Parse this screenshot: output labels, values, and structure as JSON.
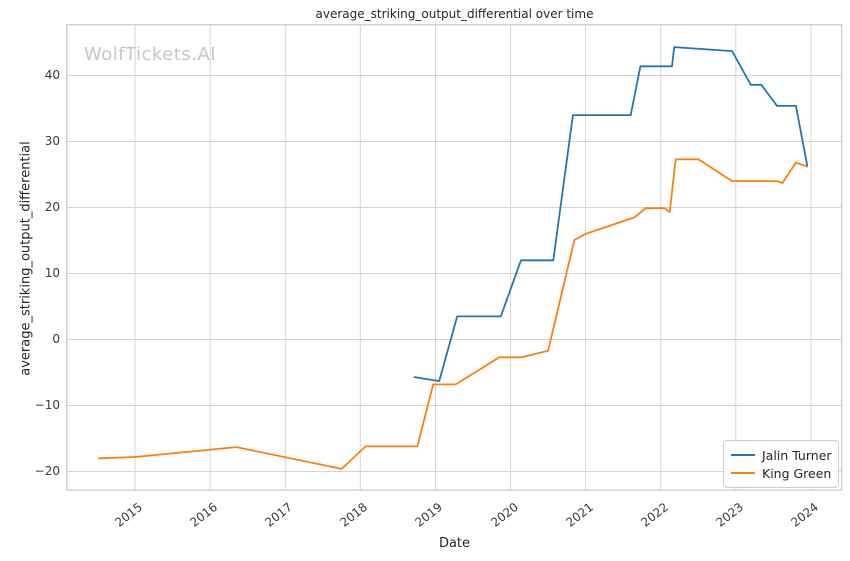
{
  "watermark": "WolfTickets.AI",
  "chart_data": {
    "type": "line",
    "title": "average_striking_output_differential over time",
    "xlabel": "Date",
    "ylabel": "average_striking_output_differential",
    "grid": true,
    "legend_position": "lower right",
    "x_ticks": [
      2015,
      2016,
      2017,
      2018,
      2019,
      2020,
      2021,
      2022,
      2023,
      2024
    ],
    "y_ticks": [
      -20,
      -10,
      0,
      10,
      20,
      30,
      40
    ],
    "xlim": [
      2014.09,
      2024.41
    ],
    "ylim": [
      -22.8,
      47.7
    ],
    "series": [
      {
        "name": "Jalin Turner",
        "color": "#1f77b4",
        "points": [
          [
            2018.72,
            -5.7
          ],
          [
            2019.05,
            -6.3
          ],
          [
            2019.29,
            3.5
          ],
          [
            2019.87,
            3.5
          ],
          [
            2020.14,
            12.0
          ],
          [
            2020.57,
            12.0
          ],
          [
            2020.83,
            34.0
          ],
          [
            2021.6,
            34.0
          ],
          [
            2021.73,
            41.4
          ],
          [
            2022.15,
            41.4
          ],
          [
            2022.18,
            44.3
          ],
          [
            2022.95,
            43.7
          ],
          [
            2023.2,
            38.6
          ],
          [
            2023.34,
            38.6
          ],
          [
            2023.55,
            35.4
          ],
          [
            2023.8,
            35.4
          ],
          [
            2023.95,
            26.4
          ]
        ]
      },
      {
        "name": "King Green",
        "color": "#ff7f0e",
        "points": [
          [
            2014.52,
            -18.0
          ],
          [
            2015.0,
            -17.8
          ],
          [
            2016.35,
            -16.3
          ],
          [
            2017.75,
            -19.6
          ],
          [
            2018.07,
            -16.2
          ],
          [
            2018.76,
            -16.2
          ],
          [
            2018.97,
            -6.8
          ],
          [
            2019.27,
            -6.8
          ],
          [
            2019.85,
            -2.7
          ],
          [
            2020.15,
            -2.7
          ],
          [
            2020.5,
            -1.7
          ],
          [
            2020.85,
            15.1
          ],
          [
            2021.0,
            16.0
          ],
          [
            2021.65,
            18.5
          ],
          [
            2021.8,
            19.9
          ],
          [
            2022.05,
            19.9
          ],
          [
            2022.12,
            19.3
          ],
          [
            2022.2,
            27.3
          ],
          [
            2022.5,
            27.3
          ],
          [
            2022.95,
            24.0
          ],
          [
            2023.55,
            24.0
          ],
          [
            2023.62,
            23.7
          ],
          [
            2023.8,
            26.8
          ],
          [
            2023.95,
            26.2
          ]
        ]
      }
    ]
  }
}
